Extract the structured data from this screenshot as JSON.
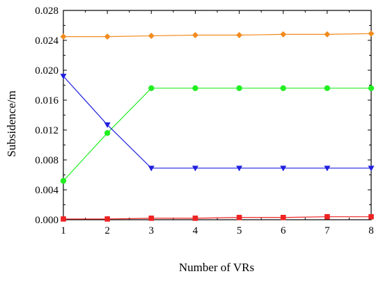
{
  "chart_data": {
    "type": "line",
    "title": "",
    "xlabel": "Number of VRs",
    "ylabel": "Subsidence/m",
    "x": [
      1,
      2,
      3,
      4,
      5,
      6,
      7,
      8
    ],
    "xlim": [
      1,
      8
    ],
    "ylim": [
      0.0,
      0.028
    ],
    "x_ticks": [
      "1",
      "2",
      "3",
      "4",
      "5",
      "6",
      "7",
      "8"
    ],
    "y_ticks": [
      "0.000",
      "0.004",
      "0.008",
      "0.012",
      "0.016",
      "0.020",
      "0.024",
      "0.028"
    ],
    "y_tick_values": [
      0.0,
      0.004,
      0.008,
      0.012,
      0.016,
      0.02,
      0.024,
      0.028
    ],
    "grid": false,
    "legend": "none",
    "series": [
      {
        "color": "#f28b1e",
        "marker": "diamond",
        "values": [
          0.0245,
          0.0245,
          0.0246,
          0.0247,
          0.0247,
          0.0248,
          0.0248,
          0.0249
        ]
      },
      {
        "color": "#22ee22",
        "marker": "circle",
        "values": [
          0.0052,
          0.0116,
          0.0176,
          0.0176,
          0.0176,
          0.0176,
          0.0176,
          0.0176
        ]
      },
      {
        "color": "#1f1fe0",
        "marker": "triangle-down",
        "values": [
          0.0192,
          0.0127,
          0.0069,
          0.0069,
          0.0069,
          0.0069,
          0.0069,
          0.0069
        ]
      },
      {
        "color": "#ee2222",
        "marker": "square",
        "values": [
          0.0001,
          0.0001,
          0.0002,
          0.0002,
          0.0003,
          0.0003,
          0.0004,
          0.0004
        ]
      }
    ]
  }
}
